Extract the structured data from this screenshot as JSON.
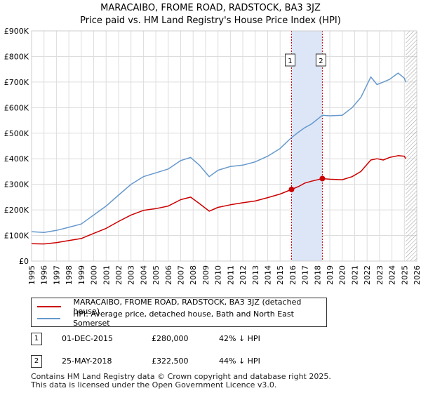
{
  "title": "MARACAIBO, FROME ROAD, RADSTOCK, BA3 3JZ",
  "subtitle": "Price paid vs. HM Land Registry's House Price Index (HPI)",
  "colors": {
    "property": "#cc0000",
    "hpi": "#6699cc",
    "shade": "#dde6f7",
    "grid": "#dddddd",
    "hatch": "#999999"
  },
  "chart_data": {
    "type": "line",
    "title": "Price paid vs. HM Land Registry's House Price Index (HPI)",
    "xlim": [
      1995,
      2026
    ],
    "ylim": [
      0,
      900000
    ],
    "x_ticks": [
      "1995",
      "1996",
      "1997",
      "1998",
      "1999",
      "2000",
      "2001",
      "2002",
      "2003",
      "2004",
      "2005",
      "2006",
      "2007",
      "2008",
      "2009",
      "2010",
      "2011",
      "2012",
      "2013",
      "2014",
      "2015",
      "2016",
      "2017",
      "2018",
      "2019",
      "2020",
      "2021",
      "2022",
      "2023",
      "2024",
      "2025",
      "2026"
    ],
    "y_ticks": [
      {
        "value": 0,
        "label": "£0"
      },
      {
        "value": 100000,
        "label": "£100K"
      },
      {
        "value": 200000,
        "label": "£200K"
      },
      {
        "value": 300000,
        "label": "£300K"
      },
      {
        "value": 400000,
        "label": "£400K"
      },
      {
        "value": 500000,
        "label": "£500K"
      },
      {
        "value": 600000,
        "label": "£600K"
      },
      {
        "value": 700000,
        "label": "£700K"
      },
      {
        "value": 800000,
        "label": "£800K"
      },
      {
        "value": 900000,
        "label": "£900K"
      }
    ],
    "shaded_period": [
      2015.92,
      2018.4
    ],
    "future_hatch_start": 2025.1,
    "series": [
      {
        "name": "MARACAIBO, FROME ROAD, RADSTOCK, BA3 3JZ (detached house)",
        "color": "#cc0000",
        "points": [
          [
            1995,
            68000
          ],
          [
            1996,
            67000
          ],
          [
            1997,
            72000
          ],
          [
            1998,
            80000
          ],
          [
            1999,
            88000
          ],
          [
            2000,
            108000
          ],
          [
            2001,
            128000
          ],
          [
            2002,
            155000
          ],
          [
            2003,
            180000
          ],
          [
            2004,
            198000
          ],
          [
            2005,
            205000
          ],
          [
            2006,
            215000
          ],
          [
            2007,
            240000
          ],
          [
            2007.8,
            250000
          ],
          [
            2008.5,
            225000
          ],
          [
            2009.3,
            195000
          ],
          [
            2010,
            210000
          ],
          [
            2011,
            220000
          ],
          [
            2012,
            228000
          ],
          [
            2013,
            235000
          ],
          [
            2014,
            248000
          ],
          [
            2015,
            262000
          ],
          [
            2015.92,
            280000
          ],
          [
            2016.5,
            292000
          ],
          [
            2017,
            305000
          ],
          [
            2017.5,
            312000
          ],
          [
            2018.4,
            322500
          ],
          [
            2019,
            320000
          ],
          [
            2020,
            318000
          ],
          [
            2020.8,
            330000
          ],
          [
            2021.5,
            350000
          ],
          [
            2022.3,
            395000
          ],
          [
            2022.8,
            400000
          ],
          [
            2023.3,
            395000
          ],
          [
            2023.8,
            405000
          ],
          [
            2024.5,
            412000
          ],
          [
            2025,
            410000
          ],
          [
            2025.1,
            400000
          ]
        ]
      },
      {
        "name": "HPI: Average price, detached house, Bath and North East Somerset",
        "color": "#6699cc",
        "points": [
          [
            1995,
            115000
          ],
          [
            1996,
            112000
          ],
          [
            1997,
            120000
          ],
          [
            1998,
            132000
          ],
          [
            1999,
            145000
          ],
          [
            2000,
            180000
          ],
          [
            2001,
            215000
          ],
          [
            2002,
            258000
          ],
          [
            2003,
            300000
          ],
          [
            2004,
            330000
          ],
          [
            2005,
            345000
          ],
          [
            2006,
            360000
          ],
          [
            2007,
            393000
          ],
          [
            2007.8,
            405000
          ],
          [
            2008.5,
            375000
          ],
          [
            2009.3,
            330000
          ],
          [
            2010,
            355000
          ],
          [
            2011,
            370000
          ],
          [
            2012,
            375000
          ],
          [
            2013,
            388000
          ],
          [
            2014,
            410000
          ],
          [
            2015,
            440000
          ],
          [
            2015.92,
            483000
          ],
          [
            2016.5,
            505000
          ],
          [
            2017,
            522000
          ],
          [
            2017.5,
            535000
          ],
          [
            2018.4,
            570000
          ],
          [
            2019,
            568000
          ],
          [
            2020,
            570000
          ],
          [
            2020.8,
            600000
          ],
          [
            2021.5,
            640000
          ],
          [
            2022.3,
            720000
          ],
          [
            2022.8,
            690000
          ],
          [
            2023.3,
            700000
          ],
          [
            2023.8,
            710000
          ],
          [
            2024.5,
            735000
          ],
          [
            2025,
            715000
          ],
          [
            2025.1,
            700000
          ]
        ]
      }
    ],
    "sales": [
      {
        "label": "1",
        "x": 2015.92,
        "y": 280000
      },
      {
        "label": "2",
        "x": 2018.4,
        "y": 322500
      }
    ]
  },
  "legend": {
    "property": "MARACAIBO, FROME ROAD, RADSTOCK, BA3 3JZ (detached house)",
    "hpi": "HPI: Average price, detached house, Bath and North East Somerset"
  },
  "table": [
    {
      "num": "1",
      "date": "01-DEC-2015",
      "price": "£280,000",
      "hpi": "42% ↓ HPI"
    },
    {
      "num": "2",
      "date": "25-MAY-2018",
      "price": "£322,500",
      "hpi": "44% ↓ HPI"
    }
  ],
  "footer": {
    "line1": "Contains HM Land Registry data © Crown copyright and database right 2025.",
    "line2": "This data is licensed under the Open Government Licence v3.0."
  }
}
